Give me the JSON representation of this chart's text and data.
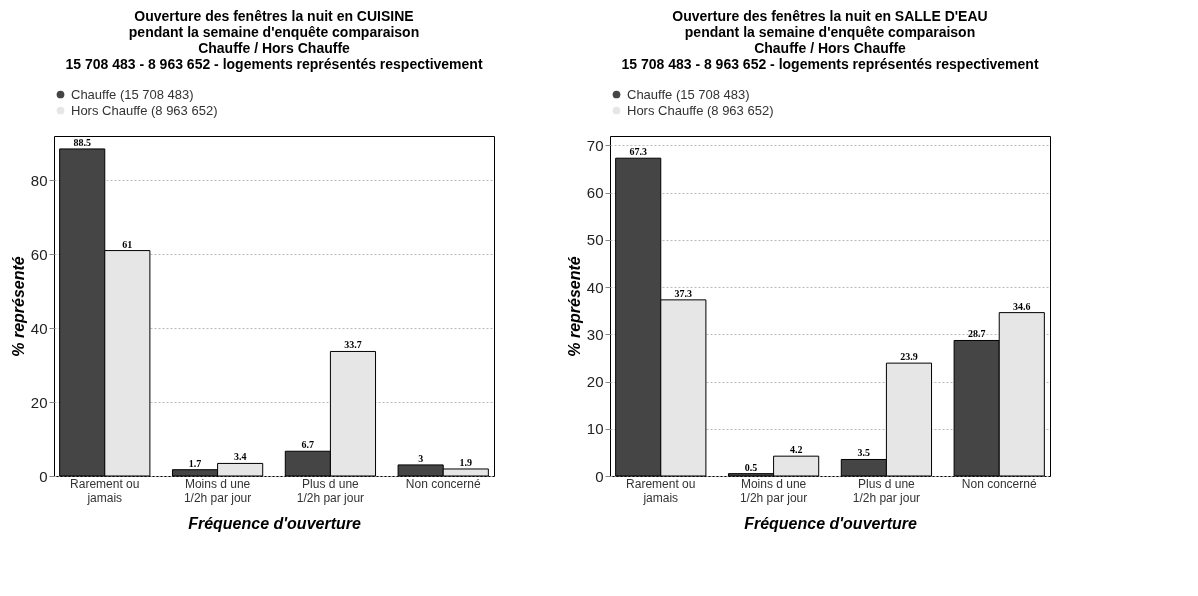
{
  "chart_data": [
    {
      "type": "bar",
      "title": "Ouverture des fenêtres la nuit en CUISINE",
      "subtitle": "pendant la semaine d'enquête comparaison\nChauffe / Hors Chauffe\n15 708 483 - 8 963 652 - logements représentés respectivement",
      "xlabel": "Fréquence d'ouverture",
      "ylabel": "% représenté",
      "categories": [
        "Rarement ou jamais",
        "Moins d une 1/2h par jour",
        "Plus d une 1/2h par jour",
        "Non concerné"
      ],
      "series": [
        {
          "name": "Chauffe (15 708 483)",
          "color": "#454545",
          "values": [
            88.5,
            1.7,
            6.7,
            3
          ]
        },
        {
          "name": "Hors Chauffe (8 963 652)",
          "color": "#e6e6e6",
          "values": [
            61,
            3.4,
            33.7,
            1.9
          ]
        }
      ],
      "ylim": [
        0,
        92
      ],
      "yticks": [
        0,
        20,
        40,
        60,
        80
      ],
      "grid": "y",
      "legend": "top left",
      "marker": "circle",
      "data_labels": true
    },
    {
      "type": "bar",
      "title": "Ouverture des fenêtres la nuit en SALLE D'EAU",
      "subtitle": "pendant la semaine d'enquête comparaison\nChauffe / Hors Chauffe\n15 708 483 - 8 963 652 - logements représentés respectivement",
      "xlabel": "Fréquence d'ouverture",
      "ylabel": "% représenté",
      "categories": [
        "Rarement ou jamais",
        "Moins d une 1/2h par jour",
        "Plus d une 1/2h par jour",
        "Non concerné"
      ],
      "series": [
        {
          "name": "Chauffe (15 708 483)",
          "color": "#454545",
          "values": [
            67.3,
            0.5,
            3.5,
            28.7
          ]
        },
        {
          "name": "Hors Chauffe (8 963 652)",
          "color": "#e6e6e6",
          "values": [
            37.3,
            4.2,
            23.9,
            34.6
          ]
        }
      ],
      "ylim": [
        0,
        72
      ],
      "yticks": [
        0,
        10,
        20,
        30,
        40,
        50,
        60,
        70
      ],
      "grid": "y",
      "legend": "top left",
      "marker": "circle",
      "data_labels": true
    }
  ]
}
